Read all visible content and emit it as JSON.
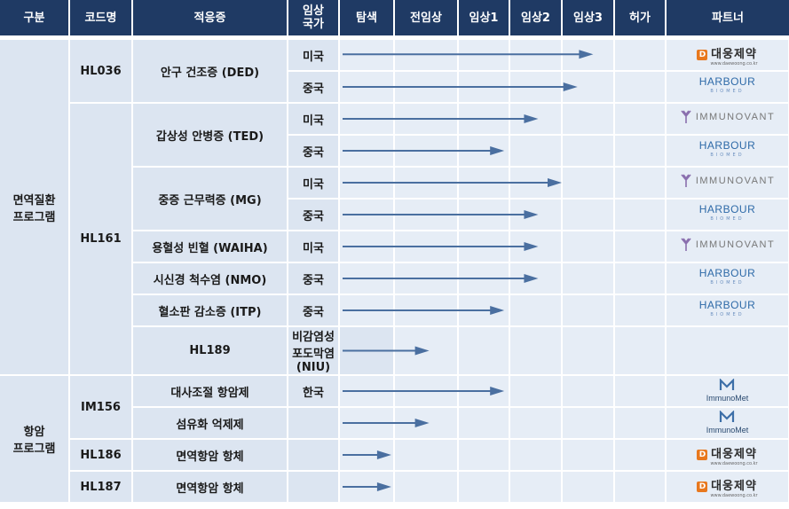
{
  "headers": [
    "구분",
    "코드명",
    "적응증",
    "임상\n국가",
    "탐색",
    "전임상",
    "임상1",
    "임상2",
    "임상3",
    "허가",
    "파트너"
  ],
  "programs": {
    "immune": "면역질환\n프로그램",
    "oncology": "항암\n프로그램"
  },
  "codes": {
    "HL036": "HL036",
    "HL161": "HL161",
    "HL189": "HL189",
    "IM156": "IM156",
    "HL186": "HL186",
    "HL187": "HL187"
  },
  "indications": {
    "ded": "안구 건조증 (DED)",
    "ted": "갑상성 안병증 (TED)",
    "mg": "중증 근무력증 (MG)",
    "waiha": "용혈성 빈혈 (WAIHA)",
    "nmo": "시신경 척수염 (NMO)",
    "itp": "혈소판 감소증 (ITP)",
    "niu": "비감염성 포도막염 (NIU)",
    "metab": "대사조절 항암제",
    "fibro": "섬유화 억제제",
    "immuno_ab": "면역항암 항체"
  },
  "countries": {
    "us": "미국",
    "cn": "중국",
    "kr": "한국"
  },
  "partners": {
    "daewoong": {
      "name": "대웅제약",
      "sub": "www.daewoong.co.kr",
      "mark": "D"
    },
    "harbour": {
      "name": "HARBOUR",
      "sub": "BIOMED"
    },
    "immunovant": {
      "name": "IMMUNOVANT"
    },
    "immunomet": {
      "name": "ImmunoMet"
    }
  },
  "colors": {
    "header": "#1f3a64",
    "cell": "#dce5f1",
    "arrow": "#4a6fa0"
  },
  "stages_order": [
    "탐색",
    "전임상",
    "임상1",
    "임상2",
    "임상3",
    "허가"
  ],
  "progress": [
    {
      "row": 0,
      "end_stage": "임상3",
      "fraction": 0.6
    },
    {
      "row": 1,
      "end_stage": "임상3",
      "fraction": 0.3
    },
    {
      "row": 2,
      "end_stage": "임상2",
      "fraction": 0.55
    },
    {
      "row": 3,
      "end_stage": "임상1",
      "fraction": 0.9
    },
    {
      "row": 4,
      "end_stage": "임상3",
      "fraction": 0.0
    },
    {
      "row": 5,
      "end_stage": "임상2",
      "fraction": 0.55
    },
    {
      "row": 6,
      "end_stage": "임상2",
      "fraction": 0.55
    },
    {
      "row": 7,
      "end_stage": "임상2",
      "fraction": 0.55
    },
    {
      "row": 8,
      "end_stage": "임상1",
      "fraction": 0.9
    },
    {
      "row": 9,
      "end_stage": "전임상",
      "fraction": 0.55
    },
    {
      "row": 10,
      "end_stage": "임상1",
      "fraction": 0.9
    },
    {
      "row": 11,
      "end_stage": "전임상",
      "fraction": 0.55
    },
    {
      "row": 12,
      "end_stage": "탐색",
      "fraction": 0.95
    },
    {
      "row": 13,
      "end_stage": "탐색",
      "fraction": 0.95
    }
  ]
}
